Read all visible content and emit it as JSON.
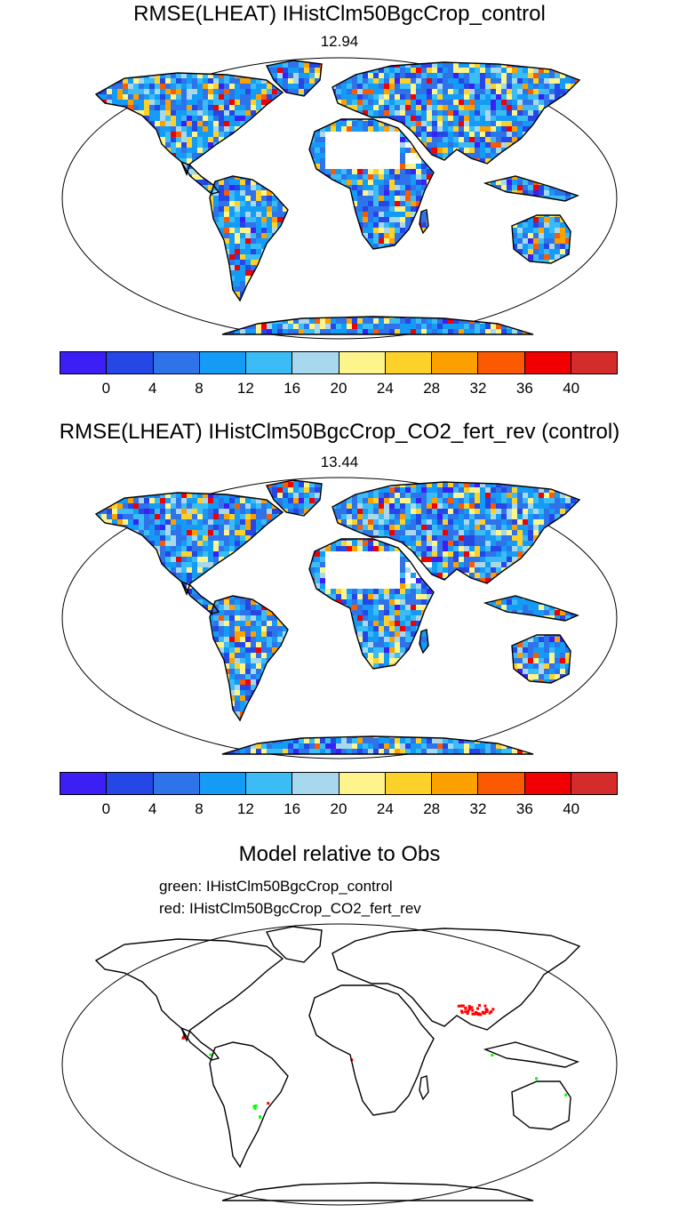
{
  "panels": [
    {
      "title": "RMSE(LHEAT) IHistClm50BgcCrop_control",
      "subtitle": "12.94"
    },
    {
      "title": "RMSE(LHEAT) IHistClm50BgcCrop_CO2_fert_rev (control)",
      "subtitle": "13.44"
    }
  ],
  "comparison": {
    "title": "Model relative to Obs",
    "legend_green": "green: IHistClm50BgcCrop_control",
    "legend_red": "red: IHistClm50BgcCrop_CO2_fert_rev"
  },
  "colorbar": {
    "colors": [
      "#3b1ff5",
      "#2447e6",
      "#2f73ea",
      "#149bf5",
      "#3cbcf5",
      "#a8d8ee",
      "#fdf58c",
      "#fcd12a",
      "#fca000",
      "#fb5a00",
      "#f00000",
      "#d42b2b"
    ],
    "tick_labels": [
      "0",
      "4",
      "8",
      "12",
      "16",
      "20",
      "24",
      "28",
      "32",
      "36",
      "40"
    ]
  },
  "palette": {
    "land_base": "#4a8cf0",
    "ocean": "#ffffff",
    "coast": "#000000",
    "green_mark": "#00ff00",
    "red_mark": "#ff0000"
  }
}
